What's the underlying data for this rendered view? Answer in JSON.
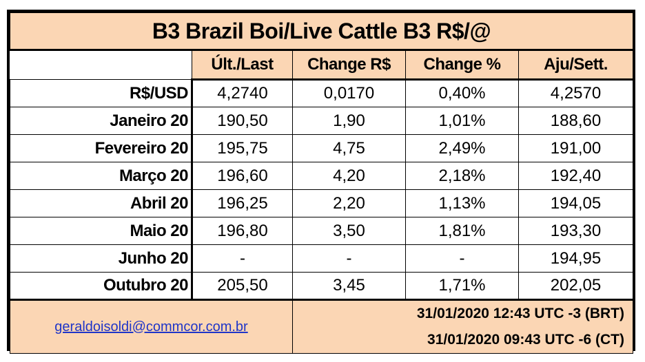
{
  "title": "B3 Brazil Boi/Live Cattle B3 R$/@",
  "columns": [
    "Últ./Last",
    "Change R$",
    "Change %",
    "Aju/Sett."
  ],
  "rows": [
    {
      "label": "R$/USD",
      "last": "4,2740",
      "change": "0,0170",
      "change_pct": "0,40%",
      "settle": "4,2570"
    },
    {
      "label": "Janeiro 20",
      "last": "190,50",
      "change": "1,90",
      "change_pct": "1,01%",
      "settle": "188,60"
    },
    {
      "label": "Fevereiro 20",
      "last": "195,75",
      "change": "4,75",
      "change_pct": "2,49%",
      "settle": "191,00"
    },
    {
      "label": "Março 20",
      "last": "196,60",
      "change": "4,20",
      "change_pct": "2,18%",
      "settle": "192,40"
    },
    {
      "label": "Abril 20",
      "last": "196,25",
      "change": "2,20",
      "change_pct": "1,13%",
      "settle": "194,05"
    },
    {
      "label": "Maio 20",
      "last": "196,80",
      "change": "3,50",
      "change_pct": "1,81%",
      "settle": "193,30"
    },
    {
      "label": "Junho 20",
      "last": "-",
      "change": "-",
      "change_pct": "-",
      "settle": "194,95"
    },
    {
      "label": "Outubro 20",
      "last": "205,50",
      "change": "3,45",
      "change_pct": "1,71%",
      "settle": "202,05"
    }
  ],
  "footer": {
    "email": "geraldoisoldi@commcor.com.br",
    "timestamp_brt": "31/01/2020 12:43  UTC -3 (BRT)",
    "timestamp_ct": "31/01/2020 09:43  UTC -6 (CT)"
  },
  "colors": {
    "header_fill": "#fbd6b4",
    "border": "#000000",
    "link": "#1f35c8"
  }
}
